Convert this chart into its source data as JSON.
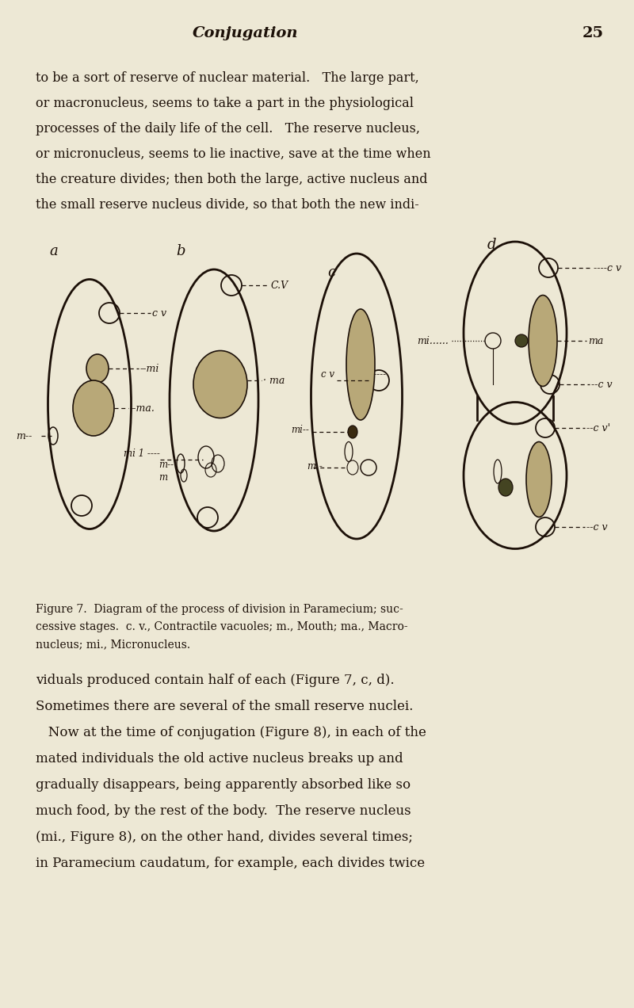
{
  "bg_color": "#ede8d5",
  "text_color": "#1c1008",
  "stipple_color": "#b8a878",
  "dark_color": "#3a2a10",
  "header_italic": "Conjugation",
  "header_page": "25",
  "body_top": [
    "to be a sort of reserve of nuclear material.   The large part,",
    "or macronucleus, seems to take a part in the physiological",
    "processes of the daily life of the cell.   The reserve nucleus,",
    "or micronucleus, seems to lie inactive, save at the time when",
    "the creature divides; then both the large, active nucleus and",
    "the small reserve nucleus divide, so that both the new indi-"
  ],
  "figure_caption_lines": [
    "Figure 7.  Diagram of the process of division in Paramecium; suc-",
    "cessive stages.  c. v., Contractile vacuoles; m., Mouth; ma., Macro-",
    "nucleus; mi., Micronucleus."
  ],
  "body_bottom": [
    "viduals produced contain half of each (Figure 7, c, d).",
    "Sometimes there are several of the small reserve nuclei.",
    "   Now at the time of conjugation (Figure 8), in each of the",
    "mated individuals the old active nucleus breaks up and",
    "gradually disappears, being apparently absorbed like so",
    "much food, by the rest of the body.  The reserve nucleus",
    "(mi., Figure 8), on the other hand, divides several times;",
    "in Paramecium caudatum, for example, each divides twice"
  ]
}
